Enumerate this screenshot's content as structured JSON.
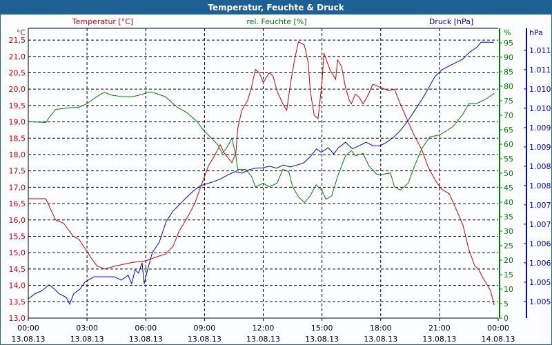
{
  "window": {
    "title": "Temperatur, Feuchte & Druck"
  },
  "chart_data": {
    "type": "line",
    "title": "Temperatur, Feuchte & Druck",
    "x_unit": "hours since 13.08.13 00:00",
    "x_ticks": [
      {
        "h": 0,
        "time": "00:00",
        "date": "13.08.13"
      },
      {
        "h": 3,
        "time": "03:00",
        "date": "13.08.13"
      },
      {
        "h": 6,
        "time": "06:00",
        "date": "13.08.13"
      },
      {
        "h": 9,
        "time": "09:00",
        "date": "13.08.13"
      },
      {
        "h": 12,
        "time": "12:00",
        "date": "13.08.13"
      },
      {
        "h": 15,
        "time": "15:00",
        "date": "13.08.13"
      },
      {
        "h": 18,
        "time": "18:00",
        "date": "13.08.13"
      },
      {
        "h": 21,
        "time": "21:00",
        "date": "13.08.13"
      },
      {
        "h": 24,
        "time": "00:00",
        "date": "14.08.13"
      }
    ],
    "xlim": [
      0,
      24
    ],
    "axes": {
      "temp": {
        "label": "Temperatur [°C]",
        "unit": "°C",
        "color": "#cc0000",
        "ylim": [
          13.0,
          21.86
        ],
        "ticks": [
          "13,0",
          "13,5",
          "14,0",
          "14,5",
          "15,0",
          "15,5",
          "16,0",
          "16,5",
          "17,0",
          "17,5",
          "18,0",
          "18,5",
          "19,0",
          "19,5",
          "20,0",
          "20,5",
          "21,0",
          "21,5"
        ]
      },
      "hum": {
        "label": "rel. Feuchte [%]",
        "unit": "%",
        "color": "#008000",
        "ylim": [
          0,
          100
        ],
        "ticks": [
          "0",
          "5",
          "10",
          "15",
          "20",
          "25",
          "30",
          "35",
          "40",
          "45",
          "50",
          "55",
          "60",
          "65",
          "70",
          "75",
          "80",
          "85",
          "90",
          "95"
        ]
      },
      "press": {
        "label": "Druck [hPa]",
        "unit": "hPa",
        "color": "#0000cc",
        "ylim": [
          1004.57,
          1012.07
        ],
        "ticks": [
          {
            "v": 1005.0,
            "t": "1.005"
          },
          {
            "v": 1005.5,
            "t": "1.005"
          },
          {
            "v": 1006.0,
            "t": "1.006"
          },
          {
            "v": 1006.5,
            "t": "1.006"
          },
          {
            "v": 1007.0,
            "t": "1.007"
          },
          {
            "v": 1007.5,
            "t": "1.007"
          },
          {
            "v": 1008.0,
            "t": "1.008"
          },
          {
            "v": 1008.5,
            "t": "1.008"
          },
          {
            "v": 1009.0,
            "t": "1.009"
          },
          {
            "v": 1009.5,
            "t": "1.009"
          },
          {
            "v": 1010.0,
            "t": "1.010"
          },
          {
            "v": 1010.5,
            "t": "1.010"
          },
          {
            "v": 1011.0,
            "t": "1.011"
          },
          {
            "v": 1011.5,
            "t": "1.011"
          }
        ]
      }
    },
    "series": [
      {
        "name": "Temperatur",
        "axis": "temp",
        "color": "#cc0000",
        "x": [
          0,
          0.9,
          1.1,
          1.4,
          1.8,
          2.3,
          2.6,
          3.2,
          3.5,
          3.9,
          4.5,
          5.3,
          6.0,
          6.7,
          7.0,
          7.4,
          7.7,
          8.1,
          8.5,
          8.8,
          9.2,
          9.5,
          9.8,
          10.0,
          10.4,
          10.6,
          10.7,
          10.9,
          11.2,
          11.4,
          11.6,
          11.8,
          12.0,
          12.3,
          12.5,
          12.7,
          13.0,
          13.2,
          13.4,
          13.6,
          13.8,
          14.1,
          14.3,
          14.4,
          14.6,
          14.8,
          15.0,
          15.1,
          15.4,
          15.7,
          15.8,
          16.0,
          16.2,
          16.4,
          16.5,
          16.7,
          16.9,
          17.1,
          17.3,
          17.6,
          18.0,
          18.4,
          18.7,
          19.0,
          19.4,
          19.7,
          20.1,
          20.4,
          20.8,
          21.1,
          21.5,
          21.8,
          22.2,
          22.5,
          22.8,
          23.0,
          23.2,
          23.6,
          23.8
        ],
        "values": [
          16.65,
          16.65,
          16.38,
          16.0,
          15.9,
          15.5,
          15.4,
          14.85,
          14.6,
          14.5,
          14.6,
          14.7,
          14.75,
          14.9,
          14.95,
          15.2,
          15.65,
          16.05,
          16.5,
          17.0,
          17.65,
          17.95,
          18.3,
          18.05,
          17.75,
          18.05,
          18.8,
          19.35,
          19.65,
          20.05,
          20.6,
          20.5,
          20.2,
          20.5,
          20.4,
          19.95,
          19.55,
          19.35,
          20.2,
          20.9,
          21.45,
          21.35,
          20.8,
          19.95,
          19.2,
          19.1,
          20.2,
          21.1,
          20.6,
          20.3,
          20.9,
          20.7,
          20.05,
          19.65,
          19.55,
          19.85,
          19.75,
          19.55,
          19.75,
          20.15,
          20.05,
          19.95,
          20.0,
          19.55,
          19.0,
          18.6,
          18.15,
          17.65,
          17.2,
          16.95,
          16.8,
          16.4,
          15.85,
          15.1,
          14.6,
          14.5,
          14.25,
          13.85,
          13.4
        ]
      },
      {
        "name": "rel. Feuchte",
        "axis": "hum",
        "color": "#008000",
        "x": [
          0,
          0.9,
          1.06,
          1.4,
          2.1,
          2.6,
          3.0,
          3.5,
          3.9,
          4.2,
          4.8,
          5.3,
          5.6,
          6.2,
          6.5,
          7.0,
          7.6,
          8.1,
          8.6,
          9.0,
          9.3,
          9.7,
          9.9,
          10.1,
          10.4,
          10.6,
          10.7,
          11.1,
          11.4,
          11.6,
          12.0,
          12.3,
          12.7,
          13.0,
          13.3,
          13.5,
          13.8,
          14.1,
          14.4,
          14.7,
          15.0,
          15.2,
          15.5,
          15.8,
          16.2,
          16.5,
          16.7,
          17.1,
          17.4,
          17.8,
          18.1,
          18.5,
          18.7,
          19.0,
          19.4,
          19.7,
          20.1,
          20.5,
          21.0,
          21.3,
          21.7,
          22.2,
          22.5,
          22.9,
          23.4,
          23.8
        ],
        "values": [
          67.8,
          67.5,
          69.2,
          72,
          72.6,
          72.8,
          74,
          76.4,
          78,
          77,
          76.4,
          76.4,
          76.8,
          78,
          77.6,
          76.4,
          72.8,
          70.9,
          68,
          64.4,
          62.5,
          59.7,
          56.8,
          58.4,
          62,
          56,
          51.3,
          51.3,
          48.9,
          45.3,
          46.5,
          45.3,
          46.5,
          51.3,
          50.6,
          45.3,
          41.8,
          39.9,
          42.2,
          46,
          44,
          41,
          42.2,
          48.9,
          56,
          57.8,
          56,
          56.8,
          52.5,
          49.6,
          49.6,
          50.1,
          45.3,
          44.2,
          46.5,
          52,
          58.5,
          62.5,
          63.2,
          64.4,
          66.1,
          70.4,
          74,
          74,
          75.7,
          77.6
        ]
      },
      {
        "name": "Druck",
        "axis": "press",
        "color": "#0000cc",
        "x": [
          0,
          0.35,
          0.7,
          1.06,
          1.34,
          1.58,
          1.94,
          2.11,
          2.32,
          2.64,
          2.89,
          3.35,
          3.87,
          4.4,
          4.75,
          5.1,
          5.28,
          5.46,
          5.63,
          5.81,
          5.92,
          6.09,
          6.34,
          6.69,
          7.04,
          7.39,
          7.75,
          8.1,
          8.45,
          8.8,
          9.15,
          9.51,
          9.86,
          10.21,
          10.56,
          10.92,
          11.27,
          11.62,
          11.97,
          12.32,
          12.68,
          13.03,
          13.38,
          13.73,
          14.08,
          14.44,
          14.72,
          14.96,
          15.32,
          15.6,
          15.85,
          16.2,
          16.55,
          16.9,
          17.25,
          17.61,
          17.96,
          18.31,
          18.66,
          19.01,
          19.37,
          19.72,
          20.07,
          20.42,
          20.77,
          21.13,
          21.48,
          21.83,
          22.18,
          22.54,
          22.89,
          23.13,
          23.77
        ],
        "values": [
          1005.07,
          1005.2,
          1005.28,
          1005.43,
          1005.32,
          1005.2,
          1005.11,
          1004.93,
          1005.2,
          1005.32,
          1005.5,
          1005.64,
          1005.64,
          1005.64,
          1005.55,
          1005.68,
          1005.46,
          1005.82,
          1005.73,
          1006.0,
          1005.46,
          1005.82,
          1006.27,
          1006.53,
          1007.07,
          1007.34,
          1007.52,
          1007.7,
          1007.87,
          1008.0,
          1008.05,
          1008.11,
          1008.18,
          1008.28,
          1008.36,
          1008.32,
          1008.41,
          1008.45,
          1008.46,
          1008.5,
          1008.45,
          1008.53,
          1008.48,
          1008.53,
          1008.59,
          1008.77,
          1008.95,
          1008.86,
          1008.98,
          1008.82,
          1008.98,
          1009.12,
          1008.95,
          1009.03,
          1009.12,
          1009.03,
          1009.03,
          1009.12,
          1009.25,
          1009.43,
          1009.66,
          1009.93,
          1010.2,
          1010.5,
          1010.82,
          1011.0,
          1011.09,
          1011.18,
          1011.27,
          1011.45,
          1011.57,
          1011.71,
          1011.71
        ]
      }
    ],
    "grid": true
  }
}
